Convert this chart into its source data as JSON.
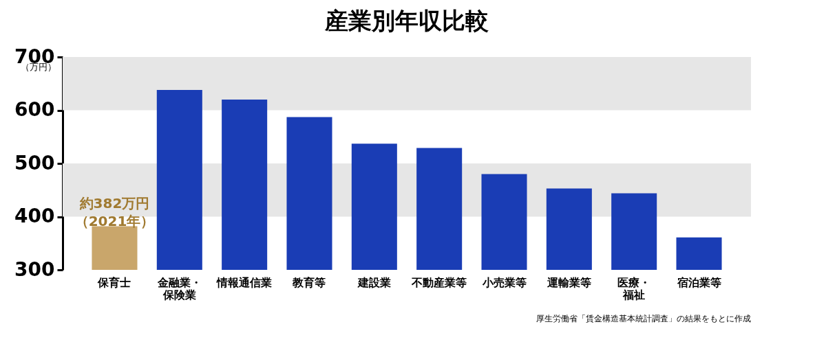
{
  "chart_data": {
    "type": "bar",
    "title": "産業別年収比較",
    "ylabel": "（万円）",
    "categories": [
      "保育士",
      "金融業・保険業",
      "情報通信業",
      "教育等",
      "建設業",
      "不動産業等",
      "小売業等",
      "運輸業等",
      "医療・福祉",
      "宿泊業等"
    ],
    "values": [
      382,
      638,
      620,
      587,
      537,
      529,
      480,
      453,
      444,
      361
    ],
    "colors": [
      "#c9a66b",
      "#1a3db5",
      "#1a3db5",
      "#1a3db5",
      "#1a3db5",
      "#1a3db5",
      "#1a3db5",
      "#1a3db5",
      "#1a3db5",
      "#1a3db5"
    ],
    "ylim": [
      300,
      700
    ],
    "yticks": [
      300,
      400,
      500,
      600,
      700
    ],
    "grid": false,
    "bands": [
      {
        "axis": "y",
        "from": 400,
        "to": 500,
        "color": "#e6e6e6"
      },
      {
        "axis": "y",
        "from": 600,
        "to": 700,
        "color": "#e6e6e6"
      }
    ],
    "annotations": [
      {
        "text": "約382万円（2021年）",
        "x": "保育士",
        "y": 382
      },
      "厚生労働省「賃金構造基本統計調査」の結果をもとに作成"
    ]
  }
}
